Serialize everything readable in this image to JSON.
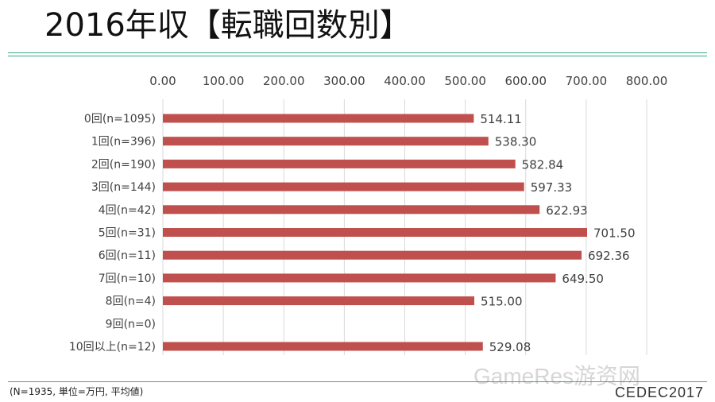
{
  "title": "2016年収【転職回数別】",
  "footnote": "(N=1935, 単位=万円, 平均値)",
  "brand": "CEDEC2017",
  "watermark": "GameRes游资网",
  "colors": {
    "bar": "#c0504d",
    "accent": "#3aaa8a",
    "grid": "#d9d9d9",
    "text": "#404040"
  },
  "chart_data": {
    "type": "bar",
    "orientation": "horizontal",
    "title": "",
    "xlabel": "",
    "ylabel": "",
    "xlim": [
      0,
      800
    ],
    "tick_values": [
      0,
      100,
      200,
      300,
      400,
      500,
      600,
      700,
      800
    ],
    "tick_labels": [
      "0.00",
      "100.00",
      "200.00",
      "300.00",
      "400.00",
      "500.00",
      "600.00",
      "700.00",
      "800.00"
    ],
    "axis_position": "top",
    "grid": true,
    "categories": [
      "0回(n=1095)",
      "1回(n=396)",
      "2回(n=190)",
      "3回(n=144)",
      "4回(n=42)",
      "5回(n=31)",
      "6回(n=11)",
      "7回(n=10)",
      "8回(n=4)",
      "9回(n=0)",
      "10回以上(n=12)"
    ],
    "values": [
      514.11,
      538.3,
      582.84,
      597.33,
      622.93,
      701.5,
      692.36,
      649.5,
      515.0,
      null,
      529.08
    ],
    "value_labels": [
      "514.11",
      "538.30",
      "582.84",
      "597.33",
      "622.93",
      "701.50",
      "692.36",
      "649.50",
      "515.00",
      "",
      "529.08"
    ]
  }
}
